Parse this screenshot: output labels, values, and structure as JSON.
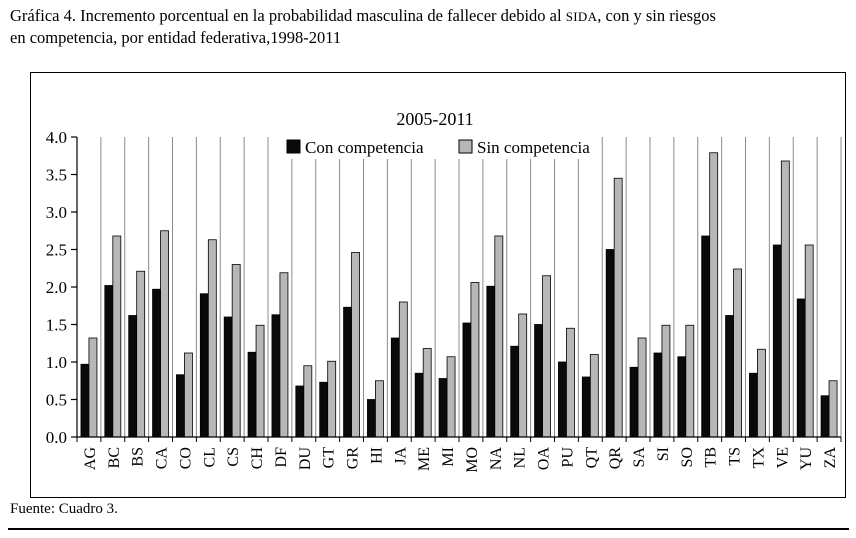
{
  "heading": {
    "line1_pre": "Gráfica 4. Incremento porcentual en la probabilidad masculina de fallecer  debido al ",
    "acronym": "SIDA",
    "line1_post": ", con y sin riesgos",
    "line2": "en competencia, por entidad federativa,1998-2011"
  },
  "source": "Fuente: Cuadro 3.",
  "chart_data": {
    "type": "bar",
    "title": "2005-2011",
    "xlabel": "",
    "ylabel": "",
    "categories": [
      "AG",
      "BC",
      "BS",
      "CA",
      "CO",
      "CL",
      "CS",
      "CH",
      "DF",
      "DU",
      "GT",
      "GR",
      "HI",
      "JA",
      "ME",
      "MI",
      "MO",
      "NA",
      "NL",
      "OA",
      "PU",
      "QT",
      "QR",
      "SA",
      "SI",
      "SO",
      "TB",
      "TS",
      "TX",
      "VE",
      "YU",
      "ZA"
    ],
    "series": [
      {
        "name": "Con competencia",
        "color": "#0a0a0a",
        "values": [
          0.97,
          2.02,
          1.62,
          1.97,
          0.83,
          1.91,
          1.6,
          1.13,
          1.63,
          0.68,
          0.73,
          1.73,
          0.5,
          1.32,
          0.85,
          0.78,
          1.52,
          2.01,
          1.21,
          1.5,
          1.0,
          0.8,
          2.5,
          0.93,
          1.12,
          1.07,
          2.68,
          1.62,
          0.85,
          2.56,
          1.84,
          0.55
        ]
      },
      {
        "name": "Sin competencia",
        "color": "#b7b7b7",
        "values": [
          1.32,
          2.68,
          2.21,
          2.75,
          1.12,
          2.63,
          2.3,
          1.49,
          2.19,
          0.95,
          1.01,
          2.46,
          0.75,
          1.8,
          1.18,
          1.07,
          2.06,
          2.68,
          1.64,
          2.15,
          1.45,
          1.1,
          3.45,
          1.32,
          1.49,
          1.49,
          3.79,
          2.24,
          1.17,
          3.68,
          2.56,
          0.75
        ]
      }
    ],
    "ylim": [
      0.0,
      4.0
    ],
    "yticks": [
      0.0,
      0.5,
      1.0,
      1.5,
      2.0,
      2.5,
      3.0,
      3.5,
      4.0
    ],
    "grid": "vertical category separators",
    "legend_position": "top-inside",
    "axis_color": "#000000",
    "grid_color": "#8c8c8c",
    "legend_background": "#ffffff"
  }
}
